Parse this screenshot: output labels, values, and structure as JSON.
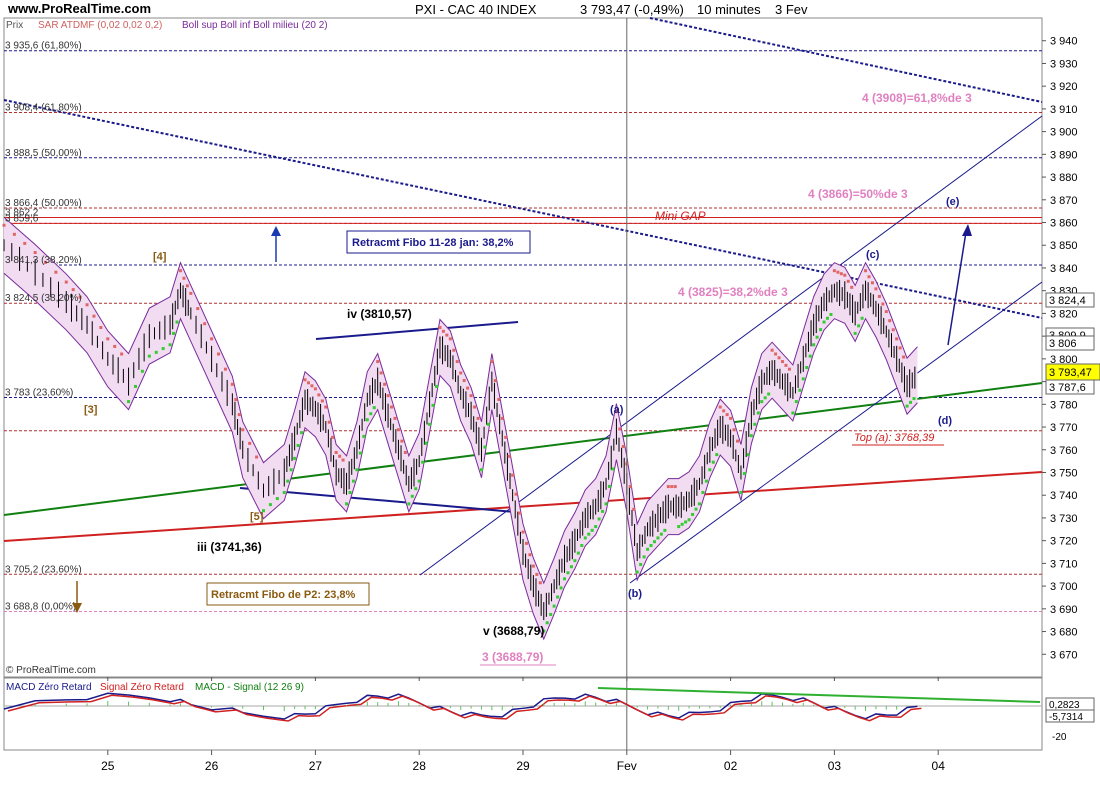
{
  "header": {
    "site": "www.ProRealTime.com",
    "title": "PXI - CAC 40 INDEX",
    "price": "3 793,47",
    "change": "(-0,49%)",
    "timeframe": "10 minutes",
    "date": "3 Fev"
  },
  "indicators": {
    "price_label": "Prix",
    "sar_label": "SAR ATDMF (0,02 0,02 0,2)",
    "boll_label": "Boll sup Boll inf Boll milieu (20 2)"
  },
  "copyright": "© ProRealTime.com",
  "macd": {
    "zero_label": "MACD Zéro Retard",
    "signal_label": "Signal Zéro Retard",
    "hist_label": "MACD - Signal (12 26 9)",
    "value1": "0,2823",
    "value2": "-5,7314",
    "tick_label": "-20"
  },
  "colors": {
    "candles": "#000000",
    "sar_up": "#33cc33",
    "sar_down": "#e06666",
    "bollinger": "#7a2a9a",
    "boll_fill": "#f1dcf1",
    "fib_blue": "#1a1a8c",
    "fib_red": "#b03030",
    "fib_pink": "#e080c0",
    "green_trend": "#108010",
    "red_trend": "#d02020",
    "mini_gap": "#d02020"
  },
  "fib_levels": [
    {
      "y": 3935.6,
      "text": "3 935,6 (61,80%)",
      "color": "blue"
    },
    {
      "y": 3908.4,
      "text": "3 908,4 (61,80%)",
      "color": "red"
    },
    {
      "y": 3888.5,
      "text": "3 888,5 (50,00%)",
      "color": "blue"
    },
    {
      "y": 3866.4,
      "text": "3 866,4 (50,00%)",
      "color": "red"
    },
    {
      "y": 3862.2,
      "text": "3 862,2",
      "color": "red"
    },
    {
      "y": 3859.6,
      "text": "3 859,6",
      "color": "red"
    },
    {
      "y": 3841.3,
      "text": "3 841,3 (38,20%)",
      "color": "blue"
    },
    {
      "y": 3824.5,
      "text": "3 824,5 (38,20%)",
      "color": "red"
    },
    {
      "y": 3783,
      "text": "3 783 (23,60%)",
      "color": "blue"
    },
    {
      "y": 3768.39,
      "text": "",
      "color": "red"
    },
    {
      "y": 3705.2,
      "text": "3 705,2 (23,60%)",
      "color": "red"
    },
    {
      "y": 3688.8,
      "text": "3 688,8 (0,00%)",
      "color": "pink"
    }
  ],
  "annotations": {
    "wave_4": "[4]",
    "wave_3": "[3]",
    "wave_5": "[5]",
    "wave_iii": "iii (3741,36)",
    "wave_iv": "iv (3810,57)",
    "wave_v": "v (3688,79)",
    "wave_3_pink": "3 (3688,79)",
    "wave_a": "(a)",
    "wave_b": "(b)",
    "wave_c": "(c)",
    "wave_d": "(d)",
    "wave_e": "(e)",
    "retrace_box_1": "Retracmt Fibo 11-28 jan: 38,2%",
    "retrace_box_2": "Retracmt Fibo de P2: 23,8%",
    "mini_gap": "Mini GAP",
    "top_a": "Top (a): 3768,39",
    "fib_text_3908": "4 (3908)=61,8%de 3",
    "fib_text_3866": "4 (3866)=50%de 3",
    "fib_text_3825": "4 (3825)=38,2%de 3"
  },
  "price_boxes": {
    "current": "3 793,47",
    "b1": "3 824,4",
    "b2": "3 809,9",
    "b3": "3 806",
    "b4": "3 787,6"
  },
  "chart_data": {
    "type": "candlestick",
    "title": "PXI - CAC 40 INDEX",
    "ylim": [
      3660,
      3950
    ],
    "yticks": [
      3670,
      3680,
      3690,
      3700,
      3710,
      3720,
      3730,
      3740,
      3750,
      3760,
      3770,
      3780,
      3790,
      3800,
      3810,
      3820,
      3830,
      3840,
      3850,
      3860,
      3870,
      3880,
      3890,
      3900,
      3910,
      3920,
      3930,
      3940
    ],
    "ytick_labels": [
      "3 670",
      "3 680",
      "3 690",
      "3 700",
      "3 710",
      "3 720",
      "3 730",
      "3 740",
      "3 750",
      "3 760",
      "3 770",
      "3 780",
      "3 790",
      "3 800",
      "3 810",
      "3 820",
      "3 830",
      "3 840",
      "3 850",
      "3 860",
      "3 870",
      "3 880",
      "3 890",
      "3 900",
      "3 910",
      "3 920",
      "3 930",
      "3 940"
    ],
    "x_labels": [
      "25",
      "26",
      "27",
      "28",
      "29",
      "Fev",
      "02",
      "03",
      "04"
    ],
    "price_path": [
      [
        0,
        3850
      ],
      [
        3,
        3838
      ],
      [
        6,
        3825
      ],
      [
        8,
        3815
      ],
      [
        10,
        3800
      ],
      [
        12,
        3790
      ],
      [
        14,
        3810
      ],
      [
        16,
        3815
      ],
      [
        17,
        3830
      ],
      [
        18,
        3820
      ],
      [
        20,
        3800
      ],
      [
        22,
        3780
      ],
      [
        23,
        3760
      ],
      [
        25,
        3742
      ],
      [
        27,
        3750
      ],
      [
        28,
        3765
      ],
      [
        29,
        3782
      ],
      [
        30,
        3778
      ],
      [
        31,
        3770
      ],
      [
        32,
        3750
      ],
      [
        33,
        3745
      ],
      [
        34,
        3760
      ],
      [
        35,
        3782
      ],
      [
        36,
        3790
      ],
      [
        37,
        3775
      ],
      [
        38,
        3760
      ],
      [
        39,
        3745
      ],
      [
        40,
        3755
      ],
      [
        41,
        3780
      ],
      [
        42,
        3805
      ],
      [
        43,
        3800
      ],
      [
        44,
        3785
      ],
      [
        45,
        3775
      ],
      [
        46,
        3760
      ],
      [
        47,
        3790
      ],
      [
        48,
        3765
      ],
      [
        49,
        3740
      ],
      [
        50,
        3715
      ],
      [
        51,
        3700
      ],
      [
        52,
        3689
      ],
      [
        53,
        3700
      ],
      [
        54,
        3712
      ],
      [
        55,
        3720
      ],
      [
        56,
        3730
      ],
      [
        57,
        3735
      ],
      [
        58,
        3745
      ],
      [
        59,
        3768
      ],
      [
        60,
        3745
      ],
      [
        61,
        3715
      ],
      [
        62,
        3725
      ],
      [
        63,
        3730
      ],
      [
        64,
        3735
      ],
      [
        65,
        3735
      ],
      [
        66,
        3738
      ],
      [
        67,
        3745
      ],
      [
        68,
        3760
      ],
      [
        69,
        3770
      ],
      [
        70,
        3765
      ],
      [
        71,
        3750
      ],
      [
        72,
        3775
      ],
      [
        73,
        3790
      ],
      [
        74,
        3795
      ],
      [
        75,
        3790
      ],
      [
        76,
        3785
      ],
      [
        77,
        3800
      ],
      [
        78,
        3815
      ],
      [
        79,
        3825
      ],
      [
        80,
        3830
      ],
      [
        81,
        3828
      ],
      [
        82,
        3820
      ],
      [
        83,
        3830
      ],
      [
        84,
        3822
      ],
      [
        85,
        3812
      ],
      [
        86,
        3800
      ],
      [
        87,
        3788
      ],
      [
        88,
        3793
      ]
    ],
    "x_range": [
      0,
      100
    ],
    "x_label_positions": [
      10,
      20,
      30,
      40,
      50,
      60,
      70,
      80,
      90
    ]
  }
}
